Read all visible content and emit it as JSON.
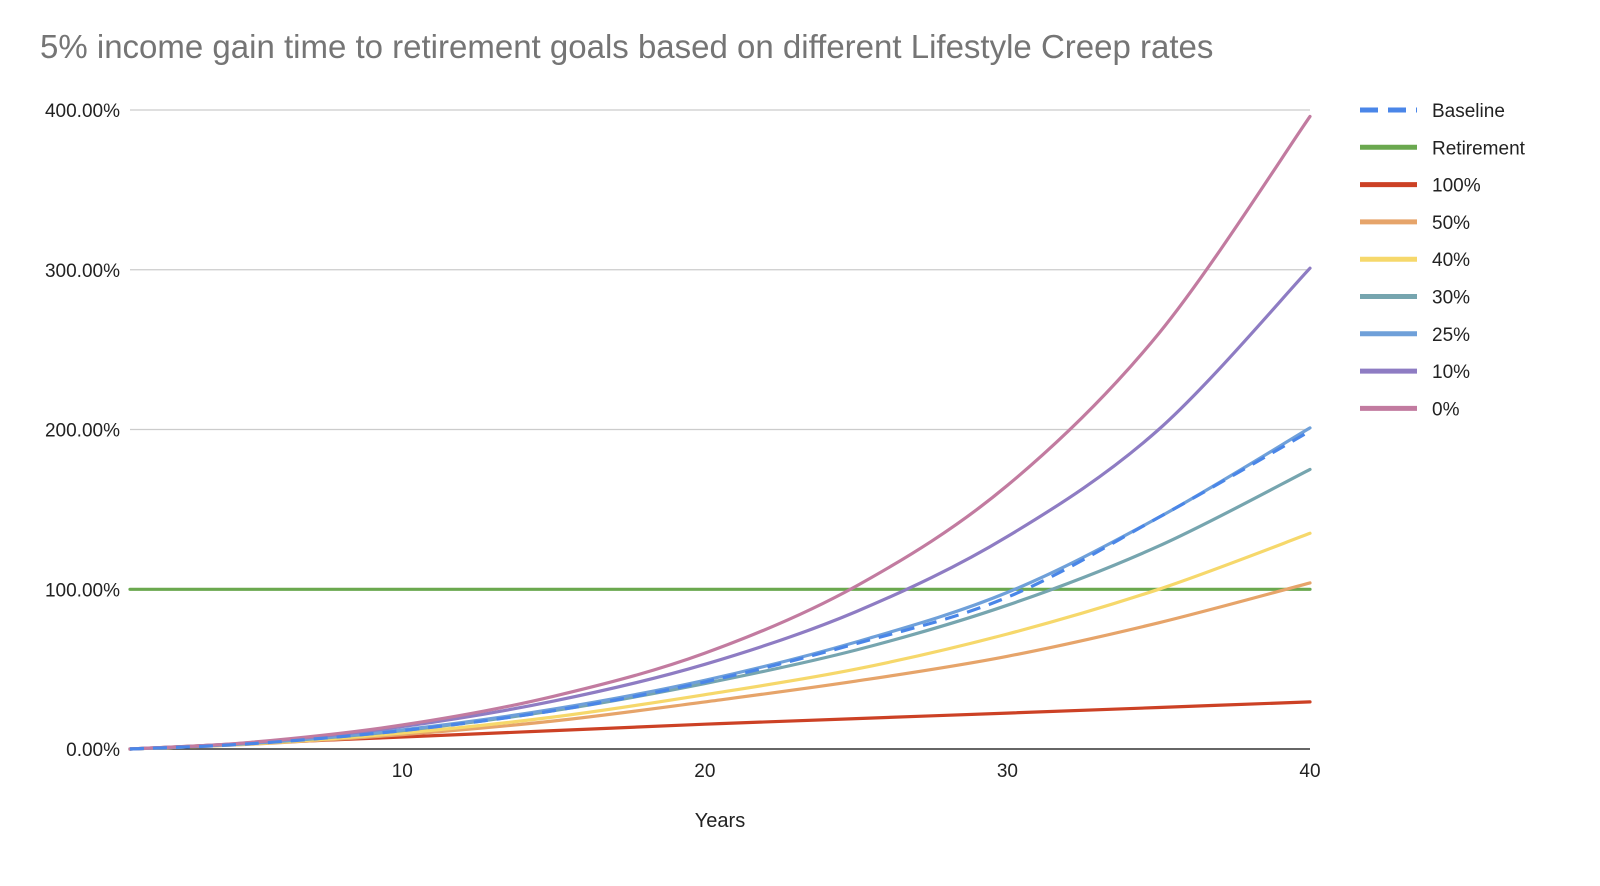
{
  "chart_data": {
    "type": "line",
    "title": "5% income gain time to retirement goals based on different Lifestyle Creep rates",
    "xlabel": "Years",
    "ylabel": "",
    "xlim": [
      1,
      40
    ],
    "ylim": [
      0,
      4
    ],
    "x_ticks": [
      10,
      20,
      30,
      40
    ],
    "y_ticks": [
      0,
      1,
      2,
      3,
      4
    ],
    "y_tick_labels": [
      "0.00%",
      "100.00%",
      "200.00%",
      "300.00%",
      "400.00%"
    ],
    "grid": true,
    "legend_position": "right",
    "x": [
      1,
      5,
      10,
      15,
      20,
      25,
      30,
      35,
      40
    ],
    "series": [
      {
        "name": "Baseline",
        "color": "#4a86e8",
        "dashed": true,
        "values": [
          0,
          0.033,
          0.115,
          0.24,
          0.42,
          0.66,
          0.95,
          1.45,
          1.99
        ]
      },
      {
        "name": "Retirement",
        "color": "#6aa84f",
        "dashed": false,
        "values": [
          1,
          1,
          1,
          1,
          1,
          1,
          1,
          1,
          1
        ]
      },
      {
        "name": "100%",
        "color": "#cc4125",
        "dashed": false,
        "values": [
          0,
          0.035,
          0.075,
          0.115,
          0.155,
          0.19,
          0.225,
          0.26,
          0.295
        ]
      },
      {
        "name": "50%",
        "color": "#e6a46a",
        "dashed": false,
        "values": [
          0,
          0.03,
          0.09,
          0.175,
          0.295,
          0.425,
          0.58,
          0.79,
          1.04
        ]
      },
      {
        "name": "40%",
        "color": "#f6d86b",
        "dashed": false,
        "values": [
          0,
          0.032,
          0.1,
          0.2,
          0.34,
          0.5,
          0.72,
          1.0,
          1.35
        ]
      },
      {
        "name": "30%",
        "color": "#76a5af",
        "dashed": false,
        "values": [
          0,
          0.035,
          0.115,
          0.24,
          0.41,
          0.62,
          0.9,
          1.27,
          1.75
        ]
      },
      {
        "name": "25%",
        "color": "#6fa0d9",
        "dashed": false,
        "values": [
          0,
          0.037,
          0.12,
          0.25,
          0.43,
          0.67,
          0.98,
          1.45,
          2.01
        ]
      },
      {
        "name": "10%",
        "color": "#8e7cc3",
        "dashed": false,
        "values": [
          0,
          0.04,
          0.14,
          0.3,
          0.53,
          0.86,
          1.33,
          2.0,
          3.01
        ]
      },
      {
        "name": "0%",
        "color": "#c27ba0",
        "dashed": false,
        "values": [
          0,
          0.042,
          0.15,
          0.33,
          0.6,
          1.02,
          1.65,
          2.6,
          3.96
        ]
      }
    ]
  }
}
